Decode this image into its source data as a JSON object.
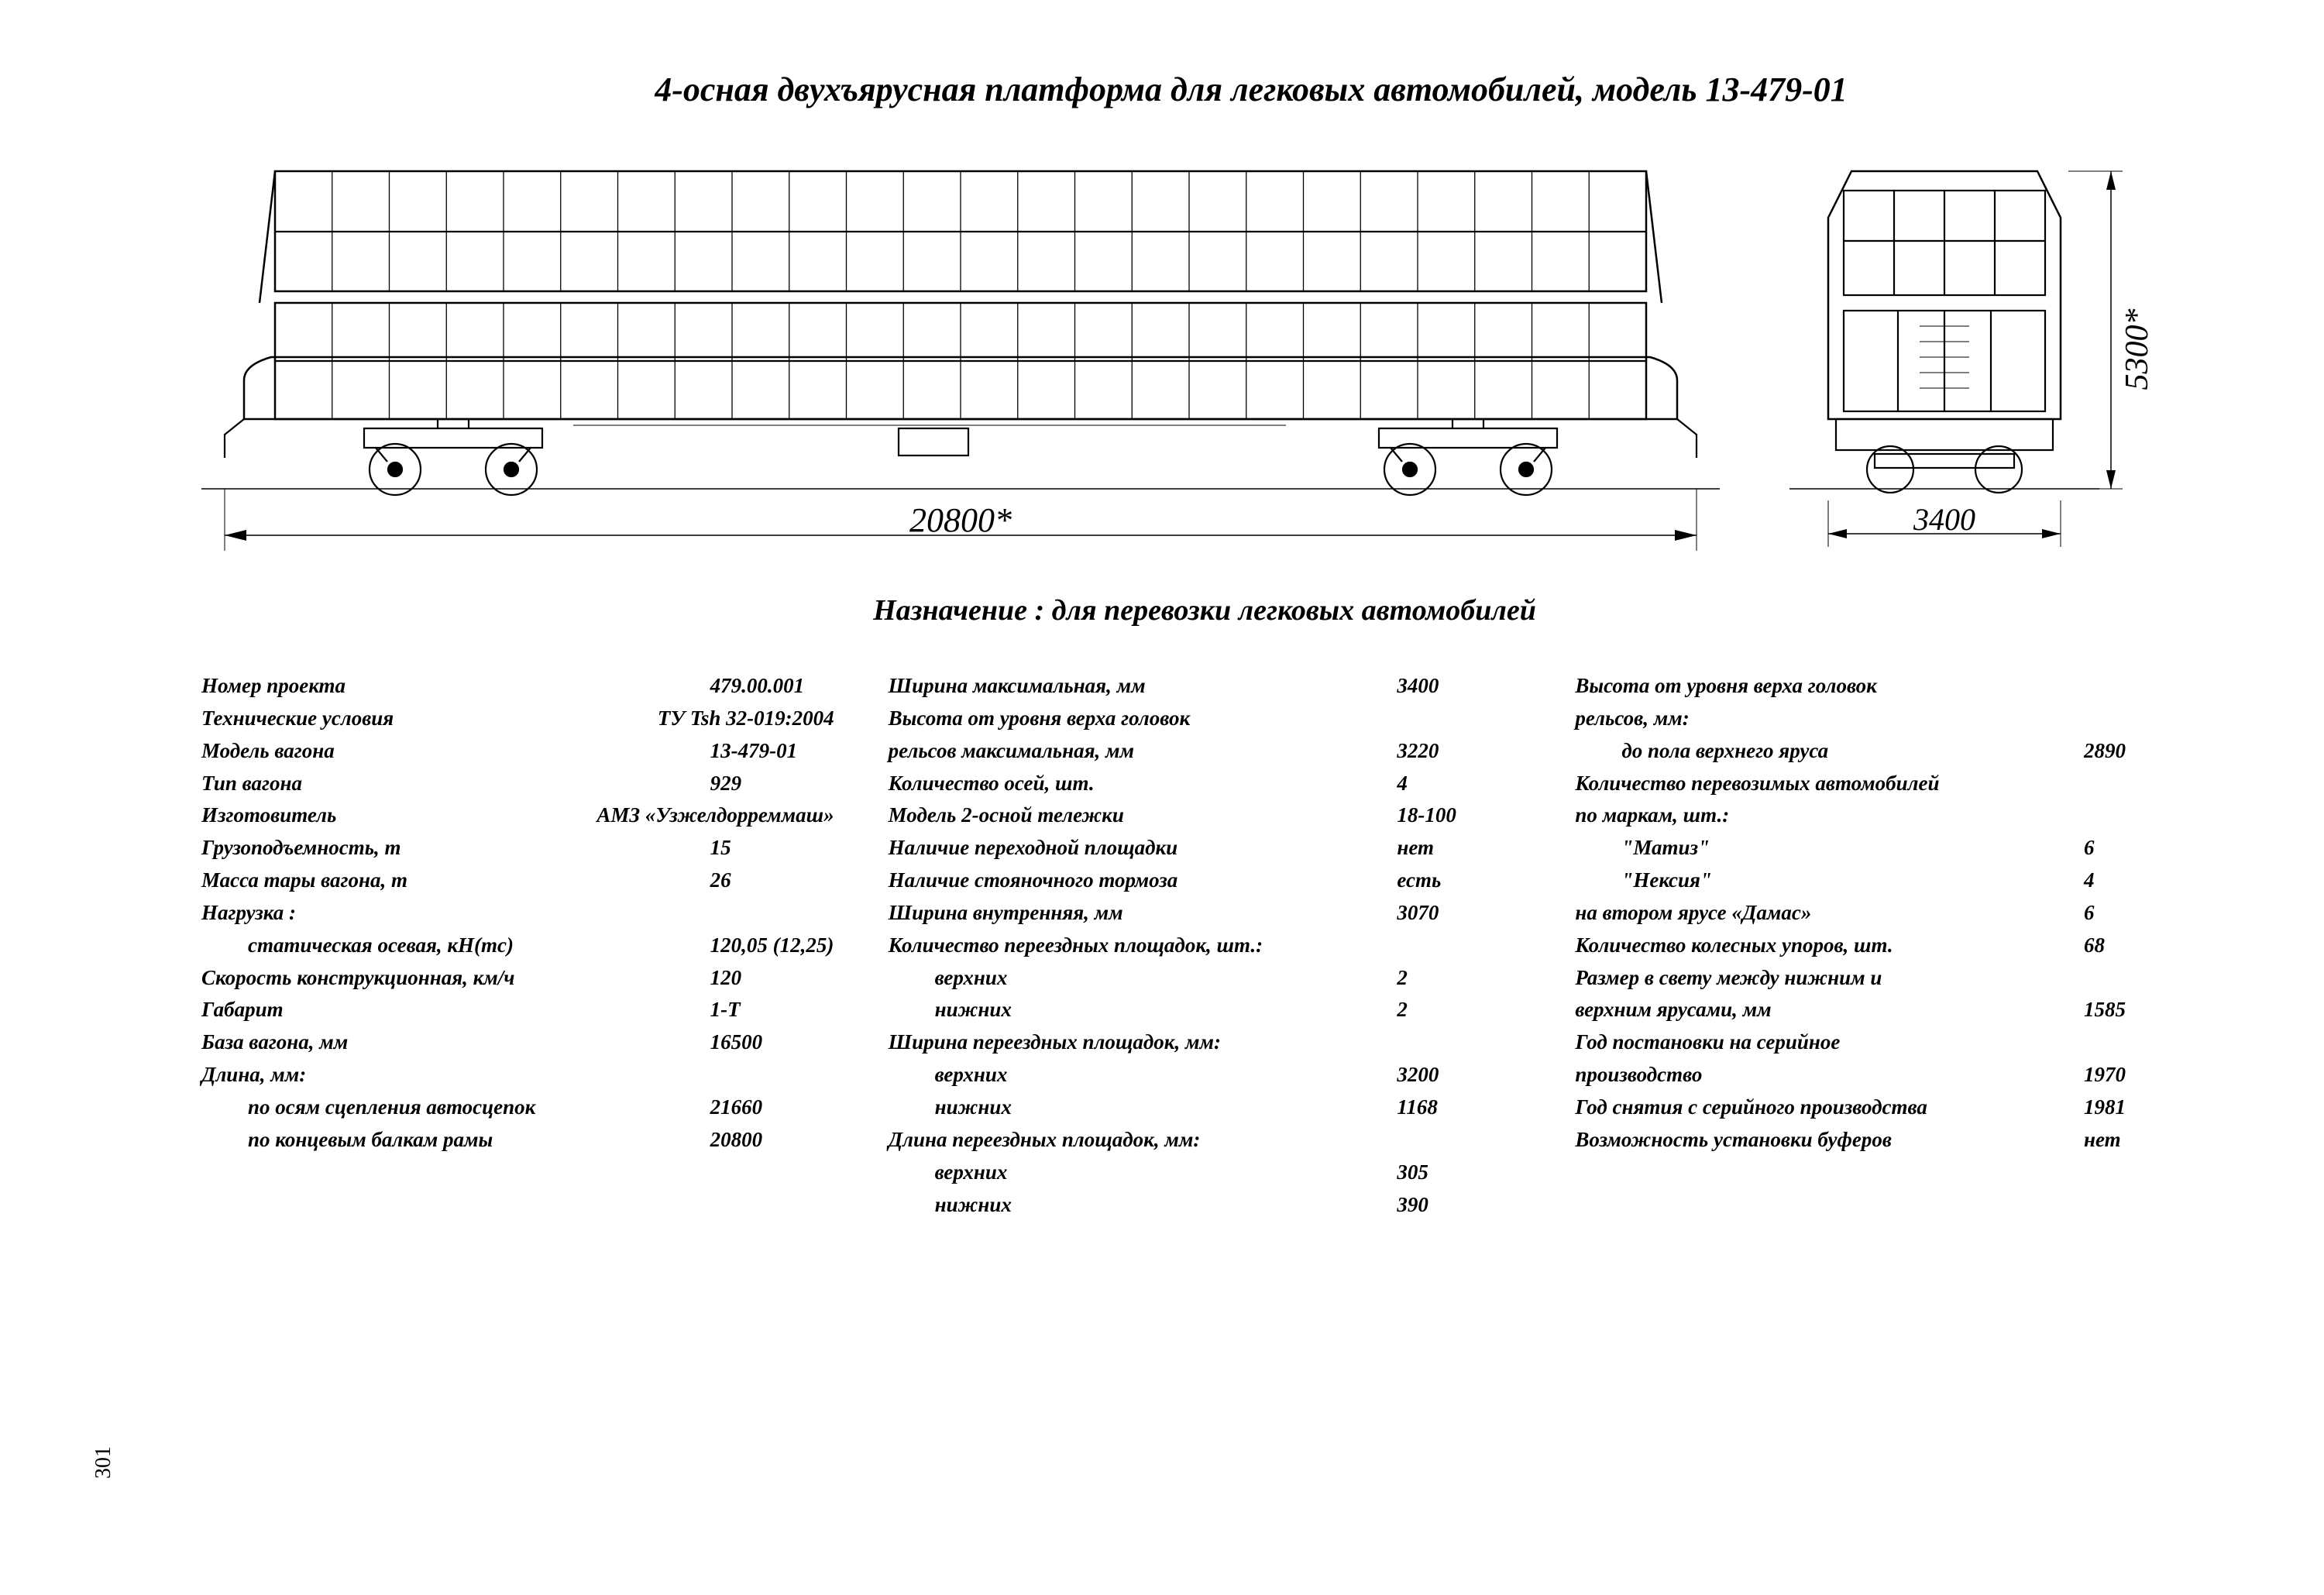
{
  "title": "4-осная двухъярусная платформа для легковых автомобилей, модель 13-479-01",
  "purpose": "Назначение : для перевозки легковых автомобилей",
  "dims": {
    "length": "20800*",
    "width": "3400",
    "height": "5300*"
  },
  "page_number": "301",
  "col1": [
    {
      "l": "Номер проекта",
      "v": "479.00.001"
    },
    {
      "l": "Технические условия",
      "v": "ТУ Tsh 32-019:2004"
    },
    {
      "l": "Модель вагона",
      "v": "13-479-01"
    },
    {
      "l": "Тип вагона",
      "v": "929"
    },
    {
      "l": "Изготовитель",
      "v": "АМЗ «Узжелдорреммаш»"
    },
    {
      "l": "Грузоподъемность, т",
      "v": "15"
    },
    {
      "l": "Масса тары вагона, т",
      "v": "26"
    },
    {
      "l": "Нагрузка :",
      "v": ""
    },
    {
      "l": "статическая осевая, кН(тс)",
      "v": "120,05 (12,25)",
      "indent": true
    },
    {
      "l": "Скорость конструкционная, км/ч",
      "v": "120"
    },
    {
      "l": "Габарит",
      "v": "1-Т"
    },
    {
      "l": "База вагона, мм",
      "v": "16500"
    },
    {
      "l": "Длина, мм:",
      "v": ""
    },
    {
      "l": "по осям сцепления автосцепок",
      "v": "21660",
      "indent": true
    },
    {
      "l": "по концевым балкам рамы",
      "v": "20800",
      "indent": true
    }
  ],
  "col2": [
    {
      "l": "Ширина максимальная, мм",
      "v": "3400"
    },
    {
      "l": "Высота от уровня верха головок",
      "v": ""
    },
    {
      "l": "рельсов максимальная, мм",
      "v": "3220"
    },
    {
      "l": "Количество осей, шт.",
      "v": "4"
    },
    {
      "l": "Модель 2-осной тележки",
      "v": "18-100"
    },
    {
      "l": "Наличие переходной площадки",
      "v": "нет"
    },
    {
      "l": "Наличие стояночного тормоза",
      "v": "есть"
    },
    {
      "l": "Ширина внутренняя, мм",
      "v": "3070"
    },
    {
      "l": "Количество переездных площадок, шт.:",
      "v": ""
    },
    {
      "l": "верхних",
      "v": "2",
      "indent": true
    },
    {
      "l": "нижних",
      "v": "2",
      "indent": true
    },
    {
      "l": "Ширина переездных площадок, мм:",
      "v": ""
    },
    {
      "l": "верхних",
      "v": "3200",
      "indent": true
    },
    {
      "l": "нижних",
      "v": "1168",
      "indent": true
    },
    {
      "l": "Длина переездных площадок, мм:",
      "v": ""
    },
    {
      "l": "верхних",
      "v": "305",
      "indent": true
    },
    {
      "l": "нижних",
      "v": "390",
      "indent": true
    }
  ],
  "col3": [
    {
      "l": "Высота от уровня верха головок",
      "v": ""
    },
    {
      "l": "рельсов, мм:",
      "v": ""
    },
    {
      "l": "до пола верхнего яруса",
      "v": "2890",
      "indent": true
    },
    {
      "l": "Количество перевозимых автомобилей",
      "v": ""
    },
    {
      "l": "по маркам, шт.:",
      "v": ""
    },
    {
      "l": "\"Матиз\"",
      "v": "6",
      "indent": true
    },
    {
      "l": "\"Нексия\"",
      "v": "4",
      "indent": true
    },
    {
      "l": "на втором ярусе «Дамас»",
      "v": "6"
    },
    {
      "l": "Количество колесных упоров, шт.",
      "v": "68"
    },
    {
      "l": "Размер в свету между нижним и",
      "v": ""
    },
    {
      "l": "верхним ярусами, мм",
      "v": "1585"
    },
    {
      "l": "Год постановки на серийное",
      "v": ""
    },
    {
      "l": "производство",
      "v": "1970"
    },
    {
      "l": "Год снятия с серийного производства",
      "v": "1981"
    },
    {
      "l": "Возможность установки буферов",
      "v": "нет"
    }
  ],
  "style": {
    "stroke": "#000000",
    "grid_stroke_w": 1.3,
    "outline_w": 2.2
  }
}
